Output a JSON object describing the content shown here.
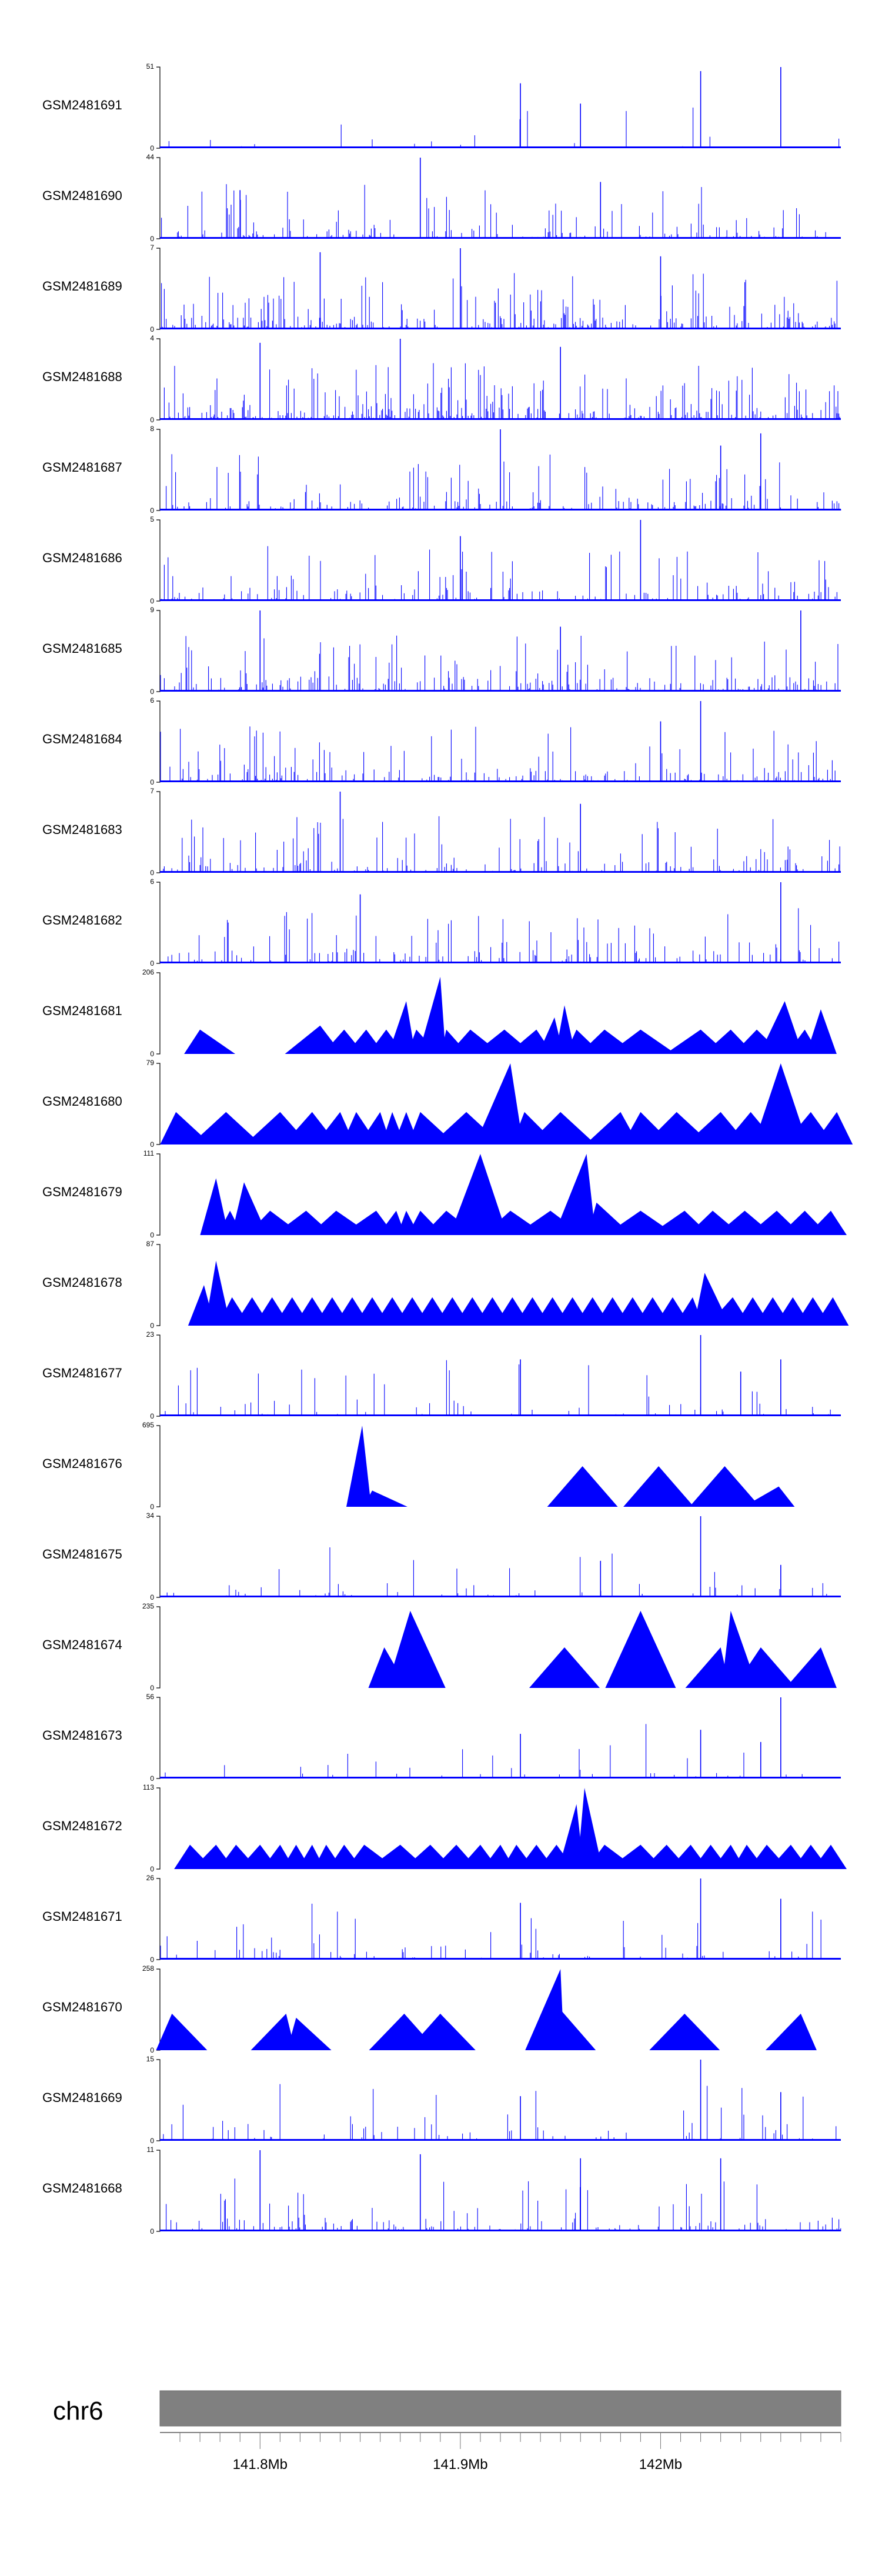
{
  "chart_data": {
    "type": "genome-track-stack",
    "series_color": "#0000FF",
    "ideogram_color": "#808080",
    "chromosome": "chr6",
    "x_range_mb": [
      141.75,
      142.09
    ],
    "x_ticks_mb": [
      141.8,
      141.9,
      142.0
    ],
    "x_tick_labels": [
      "141.8Mb",
      "141.9Mb",
      "142Mb"
    ],
    "tracks": [
      {
        "name": "GSM2481691",
        "ymax": 51,
        "ylim": [
          0,
          51
        ],
        "style": "dense",
        "density": 0.06,
        "peaks": [
          [
            141.93,
            0.8
          ],
          [
            141.96,
            0.55
          ],
          [
            142.02,
            0.95
          ],
          [
            142.06,
            1.0
          ]
        ]
      },
      {
        "name": "GSM2481690",
        "ymax": 44,
        "ylim": [
          0,
          44
        ],
        "style": "dense",
        "density": 0.35,
        "peaks": [
          [
            141.79,
            0.6
          ],
          [
            141.88,
            1.0
          ],
          [
            141.97,
            0.7
          ]
        ]
      },
      {
        "name": "GSM2481689",
        "ymax": 7,
        "ylim": [
          0,
          7
        ],
        "style": "dense",
        "density": 0.55,
        "peaks": [
          [
            141.83,
            0.95
          ],
          [
            141.9,
            1.0
          ],
          [
            142.0,
            0.9
          ]
        ]
      },
      {
        "name": "GSM2481688",
        "ymax": 4,
        "ylim": [
          0,
          4
        ],
        "style": "dense",
        "density": 0.6,
        "peaks": [
          [
            141.8,
            0.95
          ],
          [
            141.87,
            1.0
          ],
          [
            141.95,
            0.9
          ]
        ]
      },
      {
        "name": "GSM2481687",
        "ymax": 8,
        "ylim": [
          0,
          8
        ],
        "style": "dense",
        "density": 0.4,
        "peaks": [
          [
            141.92,
            1.0
          ],
          [
            142.05,
            0.95
          ],
          [
            142.03,
            0.8
          ]
        ]
      },
      {
        "name": "GSM2481686",
        "ymax": 5,
        "ylim": [
          0,
          5
        ],
        "style": "dense",
        "density": 0.4,
        "peaks": [
          [
            141.99,
            1.0
          ],
          [
            141.9,
            0.8
          ]
        ]
      },
      {
        "name": "GSM2481685",
        "ymax": 9,
        "ylim": [
          0,
          9
        ],
        "style": "dense",
        "density": 0.45,
        "peaks": [
          [
            141.8,
            1.0
          ],
          [
            142.07,
            1.0
          ],
          [
            141.95,
            0.8
          ]
        ]
      },
      {
        "name": "GSM2481684",
        "ymax": 6,
        "ylim": [
          0,
          6
        ],
        "style": "dense",
        "density": 0.45,
        "peaks": [
          [
            142.02,
            1.0
          ],
          [
            142.0,
            0.75
          ]
        ]
      },
      {
        "name": "GSM2481683",
        "ymax": 7,
        "ylim": [
          0,
          7
        ],
        "style": "dense",
        "density": 0.4,
        "peaks": [
          [
            141.84,
            1.0
          ],
          [
            141.96,
            0.85
          ]
        ]
      },
      {
        "name": "GSM2481682",
        "ymax": 6,
        "ylim": [
          0,
          6
        ],
        "style": "dense",
        "density": 0.35,
        "peaks": [
          [
            142.06,
            1.0
          ],
          [
            141.85,
            0.85
          ]
        ]
      },
      {
        "name": "GSM2481681",
        "ymax": 206,
        "ylim": [
          0,
          206
        ],
        "style": "triangles",
        "peaks": [
          [
            141.77,
            0.3
          ],
          [
            141.83,
            0.35
          ],
          [
            141.842,
            0.3
          ],
          [
            141.853,
            0.3
          ],
          [
            141.863,
            0.3
          ],
          [
            141.873,
            0.65
          ],
          [
            141.878,
            0.3
          ],
          [
            141.89,
            0.95
          ],
          [
            141.893,
            0.3
          ],
          [
            141.905,
            0.3
          ],
          [
            141.922,
            0.3
          ],
          [
            141.938,
            0.3
          ],
          [
            141.947,
            0.45
          ],
          [
            141.952,
            0.6
          ],
          [
            141.958,
            0.3
          ],
          [
            141.972,
            0.3
          ],
          [
            141.99,
            0.3
          ],
          [
            142.02,
            0.3
          ],
          [
            142.035,
            0.3
          ],
          [
            142.048,
            0.3
          ],
          [
            142.062,
            0.65
          ],
          [
            142.072,
            0.3
          ],
          [
            142.08,
            0.55
          ]
        ]
      },
      {
        "name": "GSM2481680",
        "ymax": 79,
        "ylim": [
          0,
          79
        ],
        "style": "triangles",
        "peaks": [
          [
            141.758,
            0.4
          ],
          [
            141.783,
            0.4
          ],
          [
            141.81,
            0.4
          ],
          [
            141.826,
            0.4
          ],
          [
            141.84,
            0.4
          ],
          [
            141.848,
            0.4
          ],
          [
            141.86,
            0.4
          ],
          [
            141.866,
            0.4
          ],
          [
            141.873,
            0.4
          ],
          [
            141.88,
            0.4
          ],
          [
            141.903,
            0.4
          ],
          [
            141.925,
            1.0
          ],
          [
            141.932,
            0.4
          ],
          [
            141.95,
            0.4
          ],
          [
            141.98,
            0.4
          ],
          [
            141.99,
            0.4
          ],
          [
            142.008,
            0.4
          ],
          [
            142.03,
            0.4
          ],
          [
            142.045,
            0.4
          ],
          [
            142.06,
            1.0
          ],
          [
            142.075,
            0.4
          ],
          [
            142.088,
            0.4
          ]
        ]
      },
      {
        "name": "GSM2481679",
        "ymax": 111,
        "ylim": [
          0,
          111
        ],
        "style": "triangles",
        "peaks": [
          [
            141.778,
            0.7
          ],
          [
            141.785,
            0.3
          ],
          [
            141.792,
            0.65
          ],
          [
            141.805,
            0.3
          ],
          [
            141.823,
            0.3
          ],
          [
            141.838,
            0.3
          ],
          [
            141.858,
            0.3
          ],
          [
            141.868,
            0.3
          ],
          [
            141.873,
            0.3
          ],
          [
            141.88,
            0.3
          ],
          [
            141.893,
            0.3
          ],
          [
            141.91,
            1.0
          ],
          [
            141.925,
            0.3
          ],
          [
            141.945,
            0.3
          ],
          [
            141.963,
            1.0
          ],
          [
            141.968,
            0.4
          ],
          [
            141.99,
            0.3
          ],
          [
            142.012,
            0.3
          ],
          [
            142.026,
            0.3
          ],
          [
            142.042,
            0.3
          ],
          [
            142.058,
            0.3
          ],
          [
            142.072,
            0.3
          ],
          [
            142.085,
            0.3
          ]
        ]
      },
      {
        "name": "GSM2481678",
        "ymax": 87,
        "ylim": [
          0,
          87
        ],
        "style": "triangles",
        "peaks": [
          [
            141.772,
            0.5
          ],
          [
            141.778,
            0.8
          ],
          [
            141.786,
            0.35
          ],
          [
            141.796,
            0.35
          ],
          [
            141.806,
            0.35
          ],
          [
            141.816,
            0.35
          ],
          [
            141.826,
            0.35
          ],
          [
            141.836,
            0.35
          ],
          [
            141.846,
            0.35
          ],
          [
            141.856,
            0.35
          ],
          [
            141.866,
            0.35
          ],
          [
            141.876,
            0.35
          ],
          [
            141.886,
            0.35
          ],
          [
            141.896,
            0.35
          ],
          [
            141.906,
            0.35
          ],
          [
            141.916,
            0.35
          ],
          [
            141.926,
            0.35
          ],
          [
            141.936,
            0.35
          ],
          [
            141.946,
            0.35
          ],
          [
            141.956,
            0.35
          ],
          [
            141.966,
            0.35
          ],
          [
            141.976,
            0.35
          ],
          [
            141.986,
            0.35
          ],
          [
            141.996,
            0.35
          ],
          [
            142.006,
            0.35
          ],
          [
            142.016,
            0.35
          ],
          [
            142.022,
            0.65
          ],
          [
            142.036,
            0.35
          ],
          [
            142.046,
            0.35
          ],
          [
            142.056,
            0.35
          ],
          [
            142.066,
            0.35
          ],
          [
            142.076,
            0.35
          ],
          [
            142.086,
            0.35
          ]
        ]
      },
      {
        "name": "GSM2481677",
        "ymax": 23,
        "ylim": [
          0,
          23
        ],
        "style": "dense",
        "density": 0.12,
        "peaks": [
          [
            142.02,
            1.0
          ],
          [
            142.06,
            0.7
          ],
          [
            141.93,
            0.7
          ],
          [
            142.04,
            0.55
          ]
        ]
      },
      {
        "name": "GSM2481676",
        "ymax": 695,
        "ylim": [
          0,
          695
        ],
        "style": "triangles",
        "peaks": [
          [
            141.851,
            1.0
          ],
          [
            141.856,
            0.2
          ],
          [
            141.961,
            0.5
          ],
          [
            141.999,
            0.5
          ],
          [
            142.032,
            0.5
          ],
          [
            142.059,
            0.25
          ]
        ]
      },
      {
        "name": "GSM2481675",
        "ymax": 34,
        "ylim": [
          0,
          34
        ],
        "style": "dense",
        "density": 0.12,
        "peaks": [
          [
            142.02,
            1.0
          ],
          [
            141.97,
            0.45
          ],
          [
            142.06,
            0.4
          ]
        ]
      },
      {
        "name": "GSM2481674",
        "ymax": 235,
        "ylim": [
          0,
          235
        ],
        "style": "triangles",
        "peaks": [
          [
            141.862,
            0.5
          ],
          [
            141.875,
            0.95
          ],
          [
            141.952,
            0.5
          ],
          [
            141.99,
            0.95
          ],
          [
            142.03,
            0.5
          ],
          [
            142.035,
            0.95
          ],
          [
            142.05,
            0.5
          ],
          [
            142.08,
            0.5
          ]
        ]
      },
      {
        "name": "GSM2481673",
        "ymax": 56,
        "ylim": [
          0,
          56
        ],
        "style": "dense",
        "density": 0.08,
        "peaks": [
          [
            142.06,
            1.0
          ],
          [
            142.02,
            0.6
          ],
          [
            141.93,
            0.55
          ],
          [
            142.05,
            0.45
          ]
        ]
      },
      {
        "name": "GSM2481672",
        "ymax": 113,
        "ylim": [
          0,
          113
        ],
        "style": "triangles",
        "peaks": [
          [
            141.765,
            0.3
          ],
          [
            141.778,
            0.3
          ],
          [
            141.788,
            0.3
          ],
          [
            141.8,
            0.3
          ],
          [
            141.81,
            0.3
          ],
          [
            141.818,
            0.3
          ],
          [
            141.826,
            0.3
          ],
          [
            141.833,
            0.3
          ],
          [
            141.842,
            0.3
          ],
          [
            141.852,
            0.3
          ],
          [
            141.87,
            0.3
          ],
          [
            141.885,
            0.3
          ],
          [
            141.898,
            0.3
          ],
          [
            141.91,
            0.3
          ],
          [
            141.92,
            0.3
          ],
          [
            141.928,
            0.3
          ],
          [
            141.938,
            0.3
          ],
          [
            141.948,
            0.3
          ],
          [
            141.958,
            0.8
          ],
          [
            141.962,
            1.0
          ],
          [
            141.972,
            0.3
          ],
          [
            141.99,
            0.3
          ],
          [
            142.003,
            0.3
          ],
          [
            142.015,
            0.3
          ],
          [
            142.025,
            0.3
          ],
          [
            142.035,
            0.3
          ],
          [
            142.043,
            0.3
          ],
          [
            142.053,
            0.3
          ],
          [
            142.065,
            0.3
          ],
          [
            142.075,
            0.3
          ],
          [
            142.085,
            0.3
          ]
        ]
      },
      {
        "name": "GSM2481671",
        "ymax": 26,
        "ylim": [
          0,
          26
        ],
        "style": "dense",
        "density": 0.18,
        "peaks": [
          [
            142.02,
            1.0
          ],
          [
            142.06,
            0.75
          ],
          [
            141.93,
            0.7
          ]
        ]
      },
      {
        "name": "GSM2481670",
        "ymax": 258,
        "ylim": [
          0,
          258
        ],
        "style": "triangles",
        "peaks": [
          [
            141.756,
            0.45
          ],
          [
            141.813,
            0.45
          ],
          [
            141.818,
            0.4
          ],
          [
            141.872,
            0.45
          ],
          [
            141.89,
            0.45
          ],
          [
            141.95,
            1.0
          ],
          [
            141.95,
            0.5
          ],
          [
            142.012,
            0.45
          ],
          [
            142.07,
            0.45
          ]
        ]
      },
      {
        "name": "GSM2481669",
        "ymax": 15,
        "ylim": [
          0,
          15
        ],
        "style": "dense",
        "density": 0.15,
        "peaks": [
          [
            142.02,
            1.0
          ],
          [
            142.06,
            0.6
          ],
          [
            141.93,
            0.55
          ]
        ]
      },
      {
        "name": "GSM2481668",
        "ymax": 11,
        "ylim": [
          0,
          11
        ],
        "style": "dense",
        "density": 0.3,
        "peaks": [
          [
            141.8,
            1.0
          ],
          [
            141.88,
            0.95
          ],
          [
            141.96,
            0.9
          ],
          [
            142.03,
            0.9
          ]
        ]
      }
    ]
  }
}
